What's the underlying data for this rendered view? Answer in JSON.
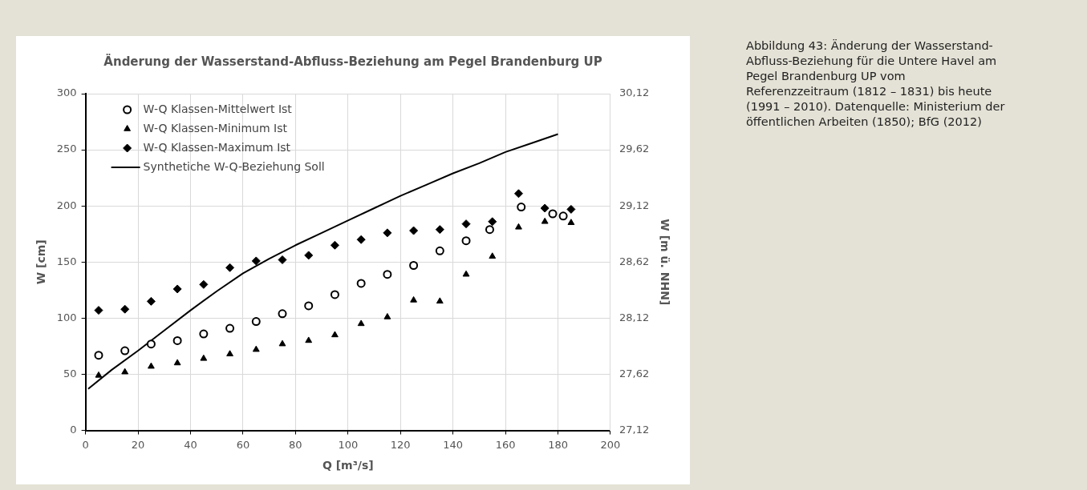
{
  "chart_data": {
    "type": "scatter",
    "title": "Änderung der Wasserstand-Abfluss-Beziehung am Pegel Brandenburg UP",
    "xlabel": "Q [m³/s]",
    "ylabel": "W [cm]",
    "y2label": "W [m ü. NHN]",
    "xlim": [
      0,
      200
    ],
    "xticks": [
      0,
      20,
      40,
      60,
      80,
      100,
      120,
      140,
      160,
      180,
      200
    ],
    "ylim": [
      0,
      300
    ],
    "yticks": [
      0,
      50,
      100,
      150,
      200,
      250,
      300
    ],
    "y2lim": [
      27.12,
      30.12
    ],
    "y2ticks": [
      {
        "value": 27.12,
        "label": "27,12"
      },
      {
        "value": 27.62,
        "label": "27,62"
      },
      {
        "value": 28.12,
        "label": "28,12"
      },
      {
        "value": 28.62,
        "label": "28,62"
      },
      {
        "value": 29.12,
        "label": "29,12"
      },
      {
        "value": 29.62,
        "label": "29,62"
      },
      {
        "value": 30.12,
        "label": "30,12"
      }
    ],
    "grid": true,
    "legend": "top left",
    "series": [
      {
        "name": "W-Q Klassen-Mittelwert Ist",
        "color": "#000000",
        "marker": "circle",
        "x": [
          5,
          15,
          25,
          35,
          45,
          55,
          65,
          75,
          85,
          95,
          105,
          115,
          125,
          135,
          145,
          154,
          166,
          178,
          182
        ],
        "values": [
          67,
          71,
          77,
          80,
          86,
          91,
          97,
          104,
          111,
          121,
          131,
          139,
          147,
          160,
          169,
          179,
          199,
          193,
          191
        ]
      },
      {
        "name": "W-Q Klassen-Minimum Ist",
        "color": "#000000",
        "marker": "triangle",
        "x": [
          5,
          15,
          25,
          35,
          45,
          55,
          65,
          75,
          85,
          95,
          105,
          115,
          125,
          135,
          145,
          155,
          165,
          175,
          185
        ],
        "values": [
          49,
          52,
          57,
          60,
          64,
          68,
          72,
          77,
          80,
          85,
          95,
          101,
          116,
          115,
          139,
          155,
          181,
          186,
          185
        ]
      },
      {
        "name": "W-Q Klassen-Maximum Ist",
        "color": "#000000",
        "marker": "diamond",
        "x": [
          5,
          15,
          25,
          35,
          45,
          55,
          65,
          75,
          85,
          95,
          105,
          115,
          125,
          135,
          145,
          155,
          165,
          175,
          185
        ],
        "values": [
          107,
          108,
          115,
          126,
          130,
          145,
          151,
          152,
          156,
          165,
          170,
          176,
          178,
          179,
          184,
          186,
          211,
          198,
          197
        ]
      },
      {
        "name": "Synthetiche W-Q-Beziehung Soll",
        "type": "line",
        "color": "#000000",
        "marker": "none",
        "line_style": "solid",
        "x": [
          1,
          10,
          20,
          30,
          40,
          50,
          60,
          70,
          80,
          90,
          100,
          110,
          120,
          130,
          140,
          150,
          160,
          170,
          180
        ],
        "values": [
          37,
          54,
          71,
          89,
          107,
          124,
          140,
          153,
          165,
          176,
          187,
          198,
          209,
          219,
          229,
          238,
          248,
          256,
          264
        ]
      }
    ],
    "annotations": [
      "Abbildung 43: Änderung der Wasserstand-Abfluss-Beziehung für die Untere Havel am Pegel Brandenburg UP vom Referenzzeitraum (1812 – 1831) bis heute (1991 – 2010). Datenquelle: Ministerium der öffentlichen Arbeiten (1850); BfG (2012)"
    ]
  }
}
